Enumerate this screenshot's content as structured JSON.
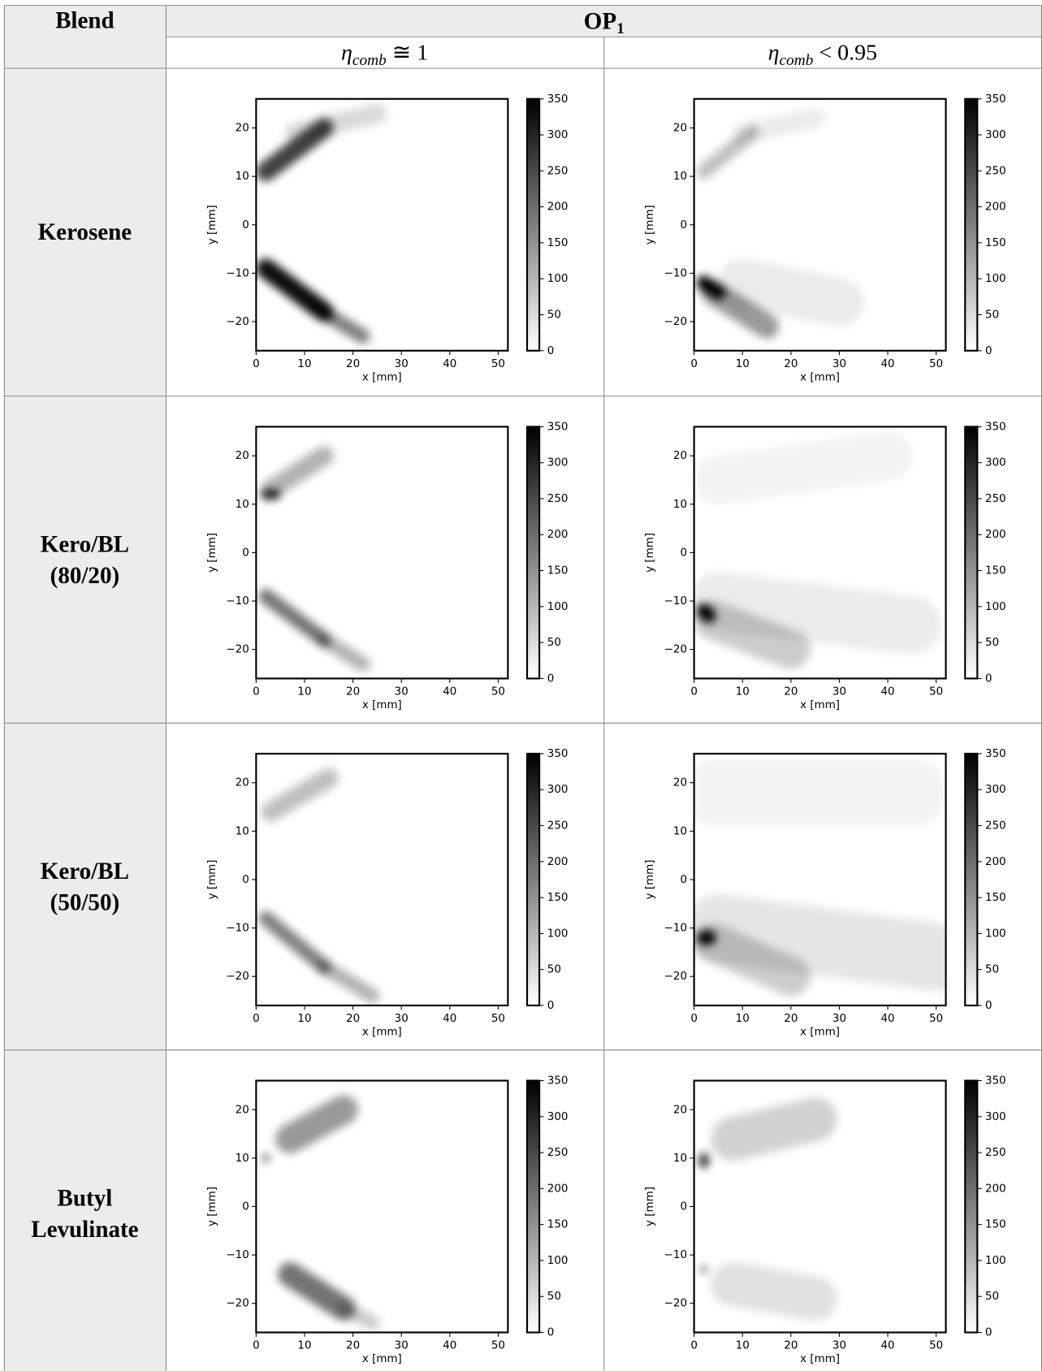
{
  "header": {
    "blend": "Blend",
    "op": {
      "text": "OP",
      "subscript": "1"
    },
    "columns": [
      {
        "symbol": "η",
        "subscript": "comb",
        "relation": " ≅ 1"
      },
      {
        "symbol": "η",
        "subscript": "comb",
        "relation": " < 0.95"
      }
    ]
  },
  "rows": [
    {
      "label": [
        "Kerosene"
      ]
    },
    {
      "label": [
        "Kero/BL",
        "(80/20)"
      ]
    },
    {
      "label": [
        "Kero/BL",
        "(50/50)"
      ]
    },
    {
      "label": [
        "Butyl",
        "Levulinate"
      ]
    }
  ],
  "axes": {
    "xlabel": "x [mm]",
    "ylabel": "y [mm]",
    "xlim": [
      0,
      52
    ],
    "ylim": [
      -26,
      26
    ],
    "xticks": [
      0,
      10,
      20,
      30,
      40,
      50
    ],
    "yticks": [
      {
        "value": -20,
        "label": "−20"
      },
      {
        "value": -10,
        "label": "−10"
      },
      0,
      10,
      20
    ],
    "clim": [
      0,
      350
    ],
    "cticks": [
      0,
      50,
      100,
      150,
      200,
      250,
      300,
      350
    ]
  }
}
